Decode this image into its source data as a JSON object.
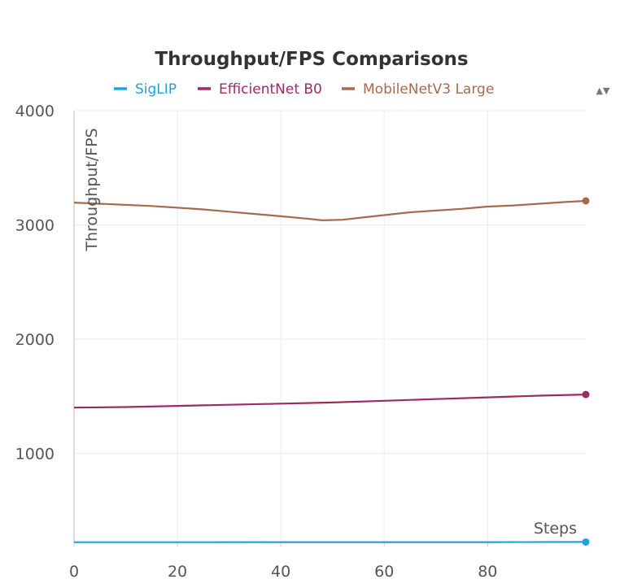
{
  "chart_data": {
    "type": "line",
    "title": "Throughput/FPS Comparisons",
    "xlabel": "Steps",
    "ylabel": "Throughput/FPS",
    "xlim": [
      0,
      99
    ],
    "ylim": [
      220,
      4000
    ],
    "x_ticks": [
      0,
      20,
      40,
      60,
      80
    ],
    "y_ticks": [
      1000,
      2000,
      3000,
      4000
    ],
    "grid": true,
    "legend_position": "top",
    "series": [
      {
        "name": "SigLIP",
        "color": "#1fa3e0",
        "x": [
          0,
          20,
          40,
          60,
          80,
          99
        ],
        "y": [
          222,
          222,
          223,
          223,
          223,
          224
        ]
      },
      {
        "name": "EfficientNet B0",
        "color": "#9c2a64",
        "x": [
          0,
          10,
          20,
          30,
          40,
          50,
          60,
          70,
          80,
          90,
          99
        ],
        "y": [
          1400,
          1405,
          1415,
          1425,
          1435,
          1445,
          1460,
          1475,
          1490,
          1505,
          1515
        ]
      },
      {
        "name": "MobileNetV3 Large",
        "color": "#a76a4f",
        "x": [
          0,
          5,
          10,
          15,
          20,
          25,
          30,
          35,
          40,
          45,
          48,
          52,
          55,
          60,
          65,
          70,
          75,
          80,
          85,
          90,
          95,
          99
        ],
        "y": [
          3195,
          3185,
          3175,
          3165,
          3150,
          3135,
          3115,
          3095,
          3075,
          3055,
          3040,
          3045,
          3060,
          3085,
          3110,
          3125,
          3140,
          3160,
          3170,
          3185,
          3200,
          3210
        ]
      }
    ]
  },
  "ui": {
    "scroll_icon": "up-down-arrows-icon"
  }
}
